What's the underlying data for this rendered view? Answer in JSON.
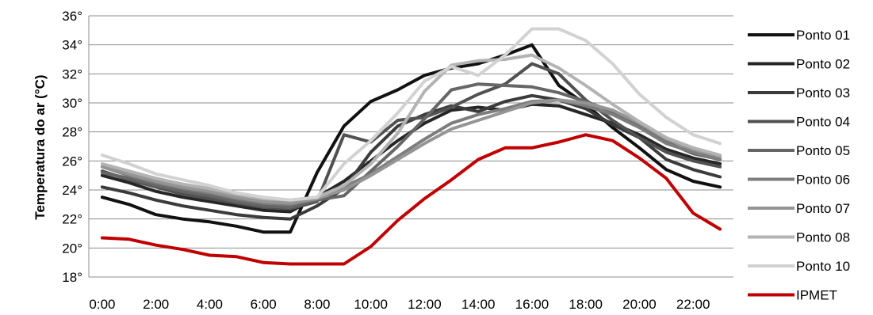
{
  "chart_data": {
    "type": "line",
    "xlabel": "",
    "ylabel": "Temperatura do ar (°C)",
    "ylim": [
      18,
      36
    ],
    "ytick_step": 2,
    "ytick_suffix": "°",
    "grid": true,
    "legend_position": "right",
    "x": [
      "0:00",
      "1:00",
      "2:00",
      "3:00",
      "4:00",
      "5:00",
      "6:00",
      "7:00",
      "8:00",
      "9:00",
      "10:00",
      "11:00",
      "12:00",
      "13:00",
      "14:00",
      "15:00",
      "16:00",
      "17:00",
      "18:00",
      "19:00",
      "20:00",
      "21:00",
      "22:00",
      "23:00"
    ],
    "x_tick_labels": [
      "0:00",
      "",
      "2:00",
      "",
      "4:00",
      "",
      "6:00",
      "",
      "8:00",
      "",
      "10:00",
      "",
      "12:00",
      "",
      "14:00",
      "",
      "16:00",
      "",
      "18:00",
      "",
      "20:00",
      "",
      "22:00",
      ""
    ],
    "series": [
      {
        "name": "Ponto 01",
        "color": "#111111",
        "values": [
          23.5,
          23.0,
          22.3,
          22.0,
          21.8,
          21.5,
          21.1,
          21.1,
          25.2,
          28.4,
          30.1,
          30.9,
          31.9,
          32.4,
          32.7,
          33.3,
          34.0,
          31.2,
          29.9,
          28.3,
          26.9,
          25.4,
          24.6,
          24.2
        ]
      },
      {
        "name": "Ponto 02",
        "color": "#262626",
        "values": [
          25.0,
          24.5,
          23.9,
          23.5,
          23.2,
          22.9,
          22.6,
          22.5,
          23.5,
          24.6,
          26.0,
          27.4,
          28.6,
          29.5,
          29.7,
          29.5,
          29.9,
          29.8,
          29.2,
          28.6,
          27.8,
          26.8,
          26.2,
          25.8
        ]
      },
      {
        "name": "Ponto 03",
        "color": "#3b3b3b",
        "values": [
          24.2,
          23.8,
          23.3,
          22.9,
          22.6,
          22.3,
          22.1,
          22.0,
          22.9,
          24.1,
          26.6,
          28.4,
          29.2,
          29.8,
          29.4,
          30.1,
          30.5,
          30.2,
          29.6,
          28.5,
          27.6,
          26.1,
          25.4,
          24.9
        ]
      },
      {
        "name": "Ponto 04",
        "color": "#515151",
        "values": [
          25.3,
          24.7,
          24.2,
          23.7,
          23.4,
          23.1,
          22.8,
          22.7,
          23.2,
          27.8,
          27.3,
          28.8,
          29.0,
          29.7,
          30.6,
          31.3,
          32.7,
          32.0,
          30.2,
          28.8,
          27.6,
          26.6,
          26.0,
          25.6
        ]
      },
      {
        "name": "Ponto 05",
        "color": "#666666",
        "values": [
          25.2,
          24.8,
          24.3,
          23.9,
          23.6,
          23.2,
          22.9,
          22.8,
          23.3,
          23.6,
          25.3,
          27.0,
          28.9,
          30.9,
          31.3,
          31.2,
          31.1,
          30.7,
          30.1,
          29.4,
          28.5,
          27.3,
          26.5,
          26.1
        ]
      },
      {
        "name": "Ponto 06",
        "color": "#7d7d7d",
        "values": [
          25.6,
          25.0,
          24.5,
          24.1,
          23.8,
          23.4,
          23.1,
          23.0,
          23.4,
          24.2,
          25.1,
          26.3,
          27.5,
          28.6,
          29.2,
          29.6,
          30.1,
          30.2,
          29.8,
          29.2,
          28.3,
          27.2,
          26.6,
          26.1
        ]
      },
      {
        "name": "Ponto 07",
        "color": "#959595",
        "values": [
          25.6,
          25.1,
          24.6,
          24.2,
          23.9,
          23.5,
          23.2,
          23.1,
          23.4,
          24.0,
          25.0,
          26.1,
          27.2,
          28.2,
          28.8,
          29.4,
          30.0,
          30.2,
          30.0,
          29.5,
          28.6,
          27.5,
          26.8,
          26.3
        ]
      },
      {
        "name": "Ponto 08",
        "color": "#b3b3b3",
        "values": [
          25.8,
          25.3,
          24.8,
          24.4,
          24.1,
          23.7,
          23.4,
          23.3,
          23.5,
          24.3,
          25.8,
          27.9,
          30.8,
          32.6,
          32.9,
          33.0,
          33.3,
          32.4,
          31.2,
          29.9,
          28.7,
          27.6,
          26.9,
          26.4
        ]
      },
      {
        "name": "Ponto 10",
        "color": "#d2d2d2",
        "values": [
          26.4,
          25.8,
          25.1,
          24.7,
          24.3,
          23.8,
          23.5,
          23.3,
          23.5,
          25.8,
          27.4,
          29.3,
          31.5,
          32.5,
          31.9,
          33.3,
          35.1,
          35.1,
          34.3,
          32.7,
          30.6,
          29.0,
          27.8,
          27.2
        ]
      },
      {
        "name": "IPMET",
        "color": "#c00000",
        "values": [
          20.7,
          20.6,
          20.2,
          19.9,
          19.5,
          19.4,
          19.0,
          18.9,
          18.9,
          18.9,
          20.1,
          21.9,
          23.4,
          24.7,
          26.1,
          26.9,
          26.9,
          27.3,
          27.8,
          27.4,
          26.2,
          24.8,
          22.4,
          21.3
        ]
      }
    ]
  }
}
